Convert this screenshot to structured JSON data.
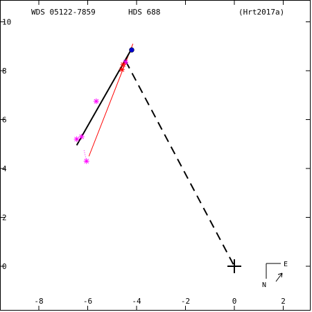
{
  "header": {
    "wds": "WDS 05122-7859",
    "disc": "HDS 688",
    "ref": "(Hrt2017a)"
  },
  "chart_data": {
    "type": "scatter",
    "title": "",
    "xlabel": "",
    "ylabel": "",
    "xlim": [
      -9.5,
      3.1
    ],
    "ylim": [
      -1.9,
      10.4
    ],
    "x_ticks": [
      -8,
      -6,
      -4,
      -2,
      0,
      2
    ],
    "x_tick_labels": [
      "-8",
      "-6",
      "-4",
      "-2",
      "0",
      "2"
    ],
    "y_ticks": [
      0,
      2,
      4,
      6,
      8,
      10
    ],
    "y_tick_labels": [
      "0",
      "2",
      "4",
      "6",
      "8",
      "10"
    ],
    "primary": {
      "x": 0,
      "y": 0
    },
    "orbit_arc": {
      "x": [
        -6.45,
        -4.2
      ],
      "y": [
        4.95,
        8.9
      ],
      "color": "#000000"
    },
    "companion_line": {
      "x": [
        -4.45,
        0
      ],
      "y": [
        8.4,
        0
      ],
      "color": "#000000"
    },
    "fit_line": {
      "x": [
        -5.95,
        -4.15
      ],
      "y": [
        4.5,
        9.1
      ],
      "color": "#ff0000"
    },
    "observations": [
      {
        "x": -6.45,
        "y": 5.2,
        "color": "#ff00ff"
      },
      {
        "x": -6.25,
        "y": 5.3,
        "color": "#ff00ff"
      },
      {
        "x": -6.05,
        "y": 4.3,
        "color": "#ff00ff"
      },
      {
        "x": -5.65,
        "y": 6.75,
        "color": "#ff00ff"
      },
      {
        "x": -4.45,
        "y": 8.35,
        "color": "#ff00ff"
      },
      {
        "x": -4.6,
        "y": 8.05,
        "color": "#ff0000"
      },
      {
        "x": -4.55,
        "y": 8.25,
        "color": "#ff0000"
      }
    ],
    "residual_links": [
      {
        "x": [
          -6.05,
          -6.15
        ],
        "y": [
          4.3,
          4.75
        ]
      }
    ],
    "latest_position": {
      "x": -4.2,
      "y": 8.85,
      "color": "#0000cc"
    },
    "compass": {
      "north": "N",
      "east": "E"
    }
  }
}
